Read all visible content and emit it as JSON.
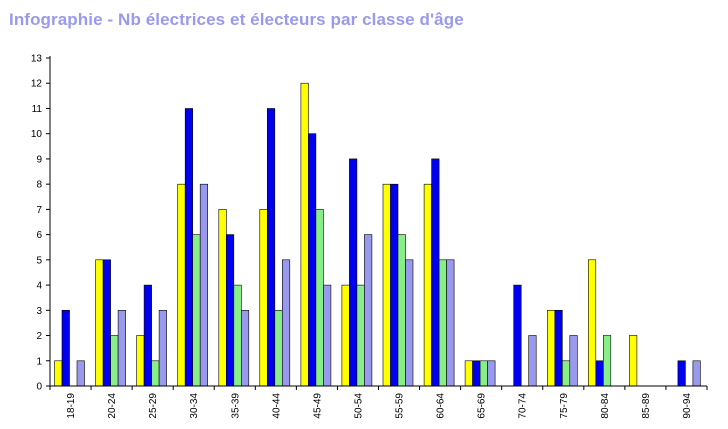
{
  "chart_data": {
    "type": "bar",
    "title": "Infographie - Nb électrices et électeurs par classe d'âge",
    "xlabel": "",
    "ylabel": "",
    "ylim": [
      0,
      13
    ],
    "yticks": [
      0,
      1,
      2,
      3,
      4,
      5,
      6,
      7,
      8,
      9,
      10,
      11,
      12,
      13
    ],
    "grid": false,
    "categories": [
      "18-19",
      "20-24",
      "25-29",
      "30-34",
      "35-39",
      "40-44",
      "45-49",
      "50-54",
      "55-59",
      "60-64",
      "65-69",
      "70-74",
      "75-79",
      "80-84",
      "85-89",
      "90-94"
    ],
    "series": [
      {
        "color": "#ffff00",
        "values": [
          1,
          5,
          2,
          8,
          7,
          7,
          12,
          4,
          8,
          8,
          1,
          0,
          3,
          5,
          2,
          0
        ]
      },
      {
        "color": "#0000ee",
        "values": [
          3,
          5,
          4,
          11,
          6,
          11,
          10,
          9,
          8,
          9,
          1,
          4,
          3,
          1,
          0,
          1
        ]
      },
      {
        "color": "#88ee88",
        "values": [
          0,
          2,
          1,
          6,
          4,
          3,
          7,
          4,
          6,
          5,
          1,
          0,
          1,
          2,
          0,
          0
        ]
      },
      {
        "color": "#9999ee",
        "values": [
          1,
          3,
          3,
          8,
          3,
          5,
          4,
          6,
          5,
          5,
          1,
          2,
          2,
          0,
          0,
          1
        ]
      }
    ]
  }
}
